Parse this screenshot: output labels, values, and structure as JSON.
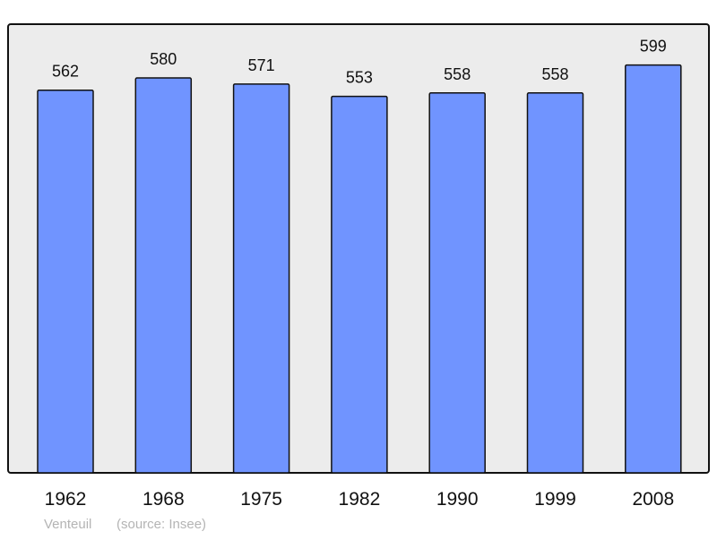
{
  "chart_data": {
    "type": "bar",
    "categories": [
      "1962",
      "1968",
      "1975",
      "1982",
      "1990",
      "1999",
      "2008"
    ],
    "values": [
      562,
      580,
      571,
      553,
      558,
      558,
      599
    ],
    "title": "",
    "xlabel": "",
    "ylabel": "",
    "ylim": [
      0,
      659
    ],
    "grid": false,
    "data_labels": true,
    "bar_color": "#7094ff",
    "background_color": "#ececec"
  },
  "caption": {
    "place": "Venteuil",
    "source": "(source: Insee)"
  }
}
